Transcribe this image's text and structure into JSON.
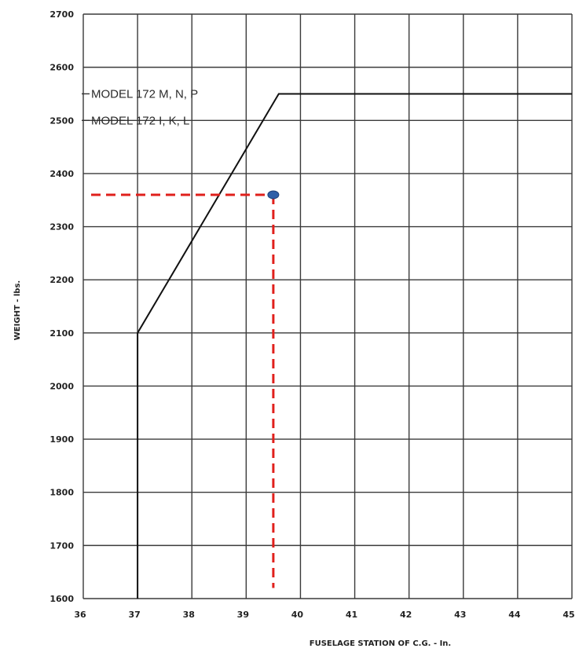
{
  "chart_data": {
    "type": "line",
    "xlabel": "FUSELAGE STATION OF C.G. - In.",
    "ylabel": "WEIGHT - lbs.",
    "xlim": [
      36,
      45
    ],
    "ylim": [
      1600,
      2700
    ],
    "x_ticks": [
      36,
      37,
      38,
      39,
      40,
      41,
      42,
      43,
      44,
      45
    ],
    "y_ticks": [
      1600,
      1700,
      1800,
      1900,
      2000,
      2100,
      2200,
      2300,
      2400,
      2500,
      2600,
      2700
    ],
    "grid": true,
    "annotations": [
      {
        "text": "MODEL 172 M, N, P",
        "weight": 2550
      },
      {
        "text": "MODEL 172 I, K, L",
        "weight": 2500
      }
    ],
    "series": [
      {
        "x": [
          37,
          37,
          39.6,
          45
        ],
        "y": [
          1600,
          2100,
          2550,
          2550
        ]
      }
    ],
    "highlight_point": {
      "x": 39.5,
      "y": 2360,
      "color": "#2e5fa8"
    },
    "guide_color": "#e0201c"
  }
}
